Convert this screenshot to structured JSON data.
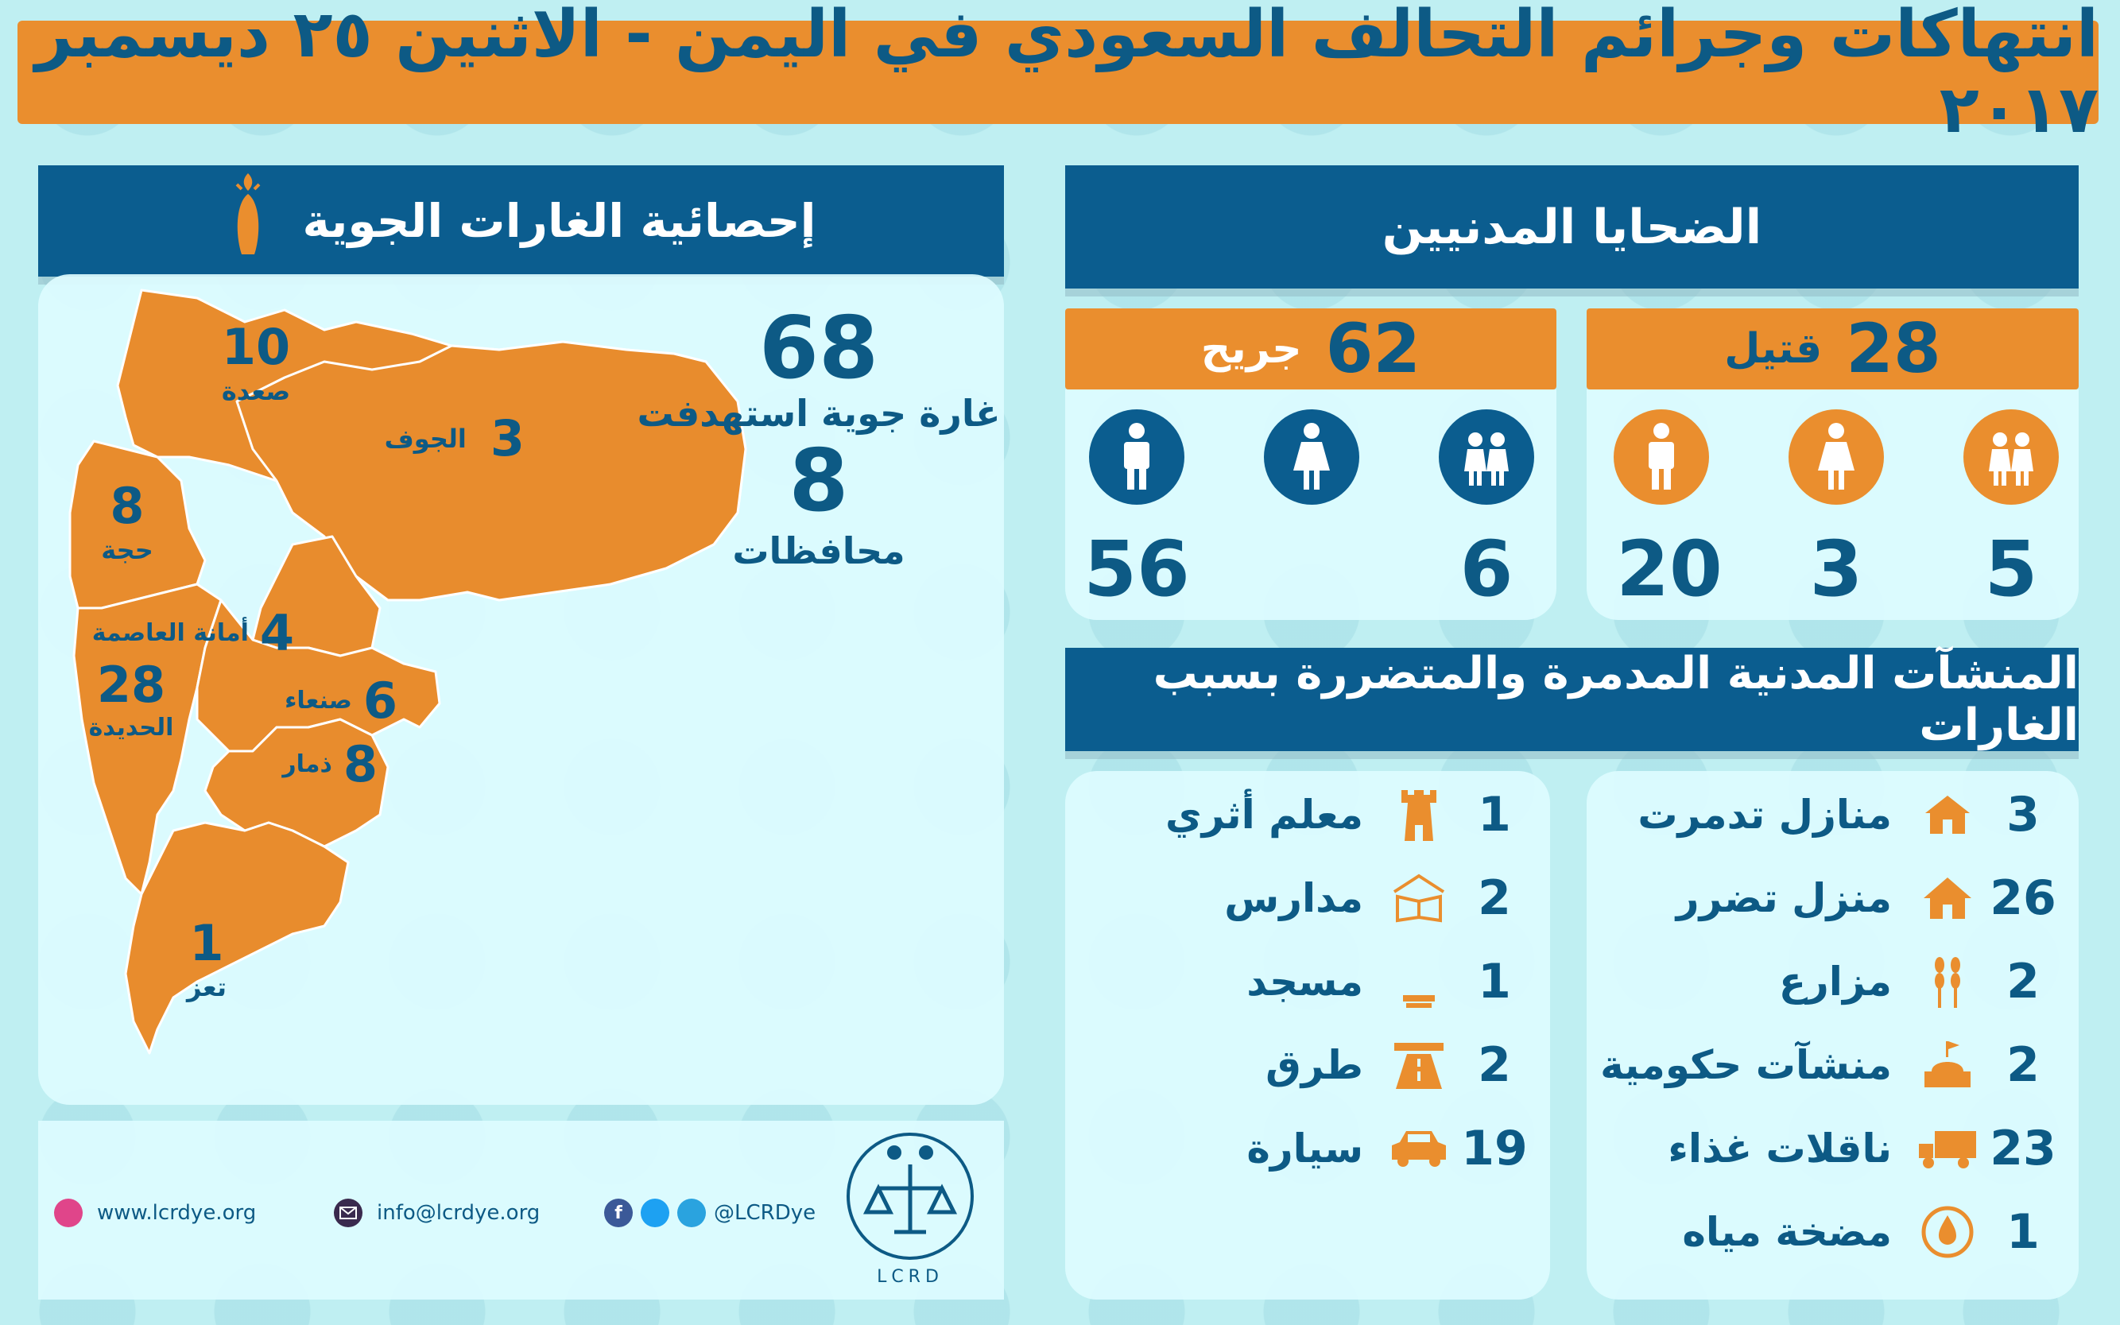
{
  "title": "انتهاكات وجرائم التحالف السعودي في اليمن - الاثنين ٢٥ ديسمبر ٢٠١٧",
  "colors": {
    "orange": "#ea8e2e",
    "navy": "#0b5d8f",
    "text": "#0d5a85",
    "background": "#bfeff2"
  },
  "airstrikes": {
    "header": "إحصائية الغارات الجوية",
    "header_icon": "missile-icon",
    "total_count": "68",
    "total_label": "غارة جوية استهدفت",
    "governorates_count": "8",
    "governorates_label": "محافظات",
    "regions": [
      {
        "num": "10",
        "name": "صعدة"
      },
      {
        "num": "3",
        "name": "الجوف"
      },
      {
        "num": "8",
        "name": "حجة"
      },
      {
        "num": "4",
        "name": "أمانة العاصمة"
      },
      {
        "num": "28",
        "name": "الحديدة"
      },
      {
        "num": "6",
        "name": "صنعاء"
      },
      {
        "num": "8",
        "name": "ذمار"
      },
      {
        "num": "1",
        "name": "تعز"
      }
    ]
  },
  "civilians": {
    "header": "الضحايا المدنيين",
    "killed": {
      "count": "28",
      "label": "قتيل",
      "children": "5",
      "women": "3",
      "men": "20"
    },
    "injured": {
      "count": "62",
      "label": "جريح",
      "children": "6",
      "women": "",
      "men": "56"
    }
  },
  "facilities": {
    "header": "المنشآت المدنية المدمرة والمتضررة بسبب الغارات",
    "right_column": [
      {
        "num": "3",
        "label": "منازل تدمرت",
        "icon": "house-destroyed-icon"
      },
      {
        "num": "26",
        "label": "منزل تضرر",
        "icon": "house-icon"
      },
      {
        "num": "2",
        "label": "مزارع",
        "icon": "wheat-icon"
      },
      {
        "num": "2",
        "label": "منشآت حكومية",
        "icon": "government-building-icon"
      },
      {
        "num": "23",
        "label": "ناقلات غذاء",
        "icon": "truck-icon"
      },
      {
        "num": "1",
        "label": "مضخة مياه",
        "icon": "water-pump-icon"
      }
    ],
    "left_column": [
      {
        "num": "1",
        "label": "معلم أثري",
        "icon": "tower-icon"
      },
      {
        "num": "2",
        "label": "مدارس",
        "icon": "book-icon"
      },
      {
        "num": "1",
        "label": "مسجد",
        "icon": "mosque-icon"
      },
      {
        "num": "2",
        "label": "طرق",
        "icon": "road-icon"
      },
      {
        "num": "19",
        "label": "سيارة",
        "icon": "car-icon"
      }
    ]
  },
  "footer": {
    "website": "www.lcrdye.org",
    "email": "info@lcrdye.org",
    "social": "@LCRDye",
    "logo_text": "LCRD"
  }
}
